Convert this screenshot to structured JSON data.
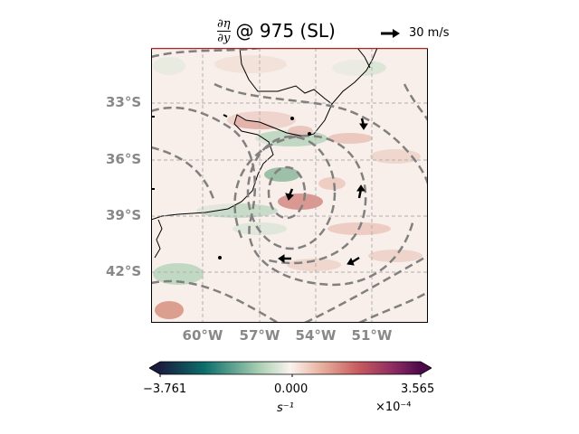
{
  "title": {
    "numerator": "∂η",
    "denominator": "∂y",
    "text": "@ 975 (SL)"
  },
  "quiver_key": {
    "label": "30 m/s"
  },
  "axes": {
    "lat_ticks": [
      "33°S",
      "36°S",
      "39°S",
      "42°S"
    ],
    "lon_ticks": [
      "60°W",
      "57°W",
      "54°W",
      "51°W"
    ]
  },
  "colorbar": {
    "min_label": "−3.761",
    "mid_label": "0.000",
    "max_label": "3.565",
    "unit": "s⁻¹",
    "exponent": "×10⁻⁴",
    "colors": [
      "#1b1d3f",
      "#0b6e6b",
      "#a9cfb2",
      "#faf3ee",
      "#e7b09d",
      "#c85b5e",
      "#8a2a62",
      "#4d0a4a"
    ]
  },
  "colors": {
    "land": "#f7f0ec",
    "frame_top": "#b22222",
    "contour": "#808080",
    "gridline": "#b0b0b0"
  }
}
